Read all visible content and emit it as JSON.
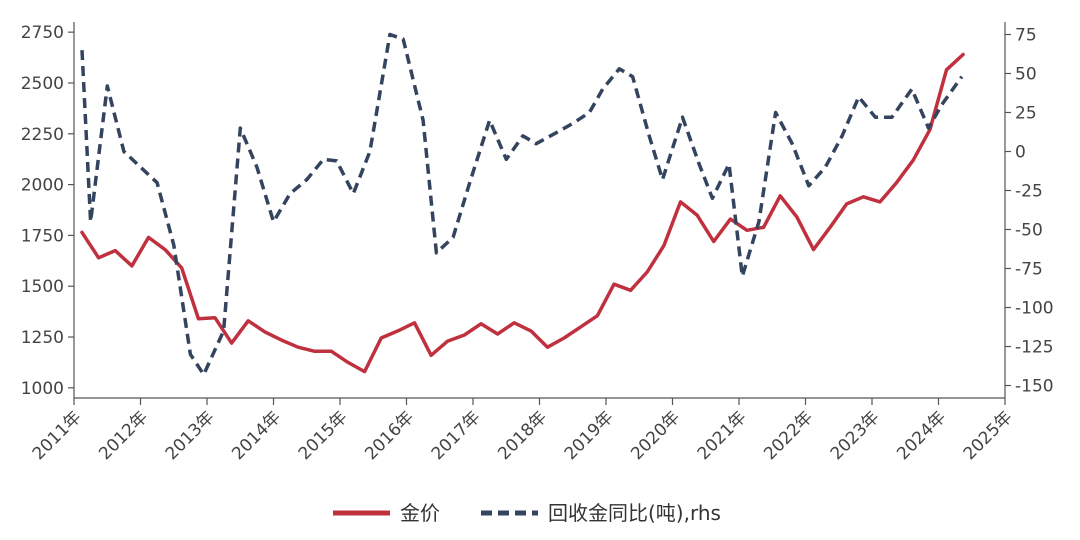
{
  "chart_data": {
    "type": "line",
    "x_axis": {
      "tick_labels": [
        "2011年",
        "2012年",
        "2013年",
        "2014年",
        "2015年",
        "2016年",
        "2017年",
        "2018年",
        "2019年",
        "2020年",
        "2021年",
        "2022年",
        "2023年",
        "2024年",
        "2025年"
      ],
      "range": [
        2011.0,
        2025.0
      ]
    },
    "y_left": {
      "range": [
        950,
        2800
      ],
      "ticks": [
        1000,
        1250,
        1500,
        1750,
        2000,
        2250,
        2500,
        2750
      ],
      "tick_labels": [
        "1000",
        "1250",
        "1500",
        "1750",
        "2000",
        "2250",
        "2500",
        "2750"
      ]
    },
    "y_right": {
      "range": [
        -158,
        83
      ],
      "ticks": [
        -150,
        -125,
        -100,
        -75,
        -50,
        -25,
        0,
        25,
        50,
        75
      ],
      "tick_labels": [
        "-150",
        "-125",
        "-100",
        "-75",
        "-50",
        "-25",
        "0",
        "25",
        "50",
        "75"
      ]
    },
    "grid": false,
    "legend_position": "bottom-center",
    "series": [
      {
        "name": "金价",
        "axis": "left",
        "color": "#c0313f",
        "style": "solid",
        "points": [
          [
            2011.12,
            1765
          ],
          [
            2011.37,
            1640
          ],
          [
            2011.62,
            1675
          ],
          [
            2011.87,
            1600
          ],
          [
            2012.12,
            1740
          ],
          [
            2012.37,
            1680
          ],
          [
            2012.62,
            1590
          ],
          [
            2012.87,
            1340
          ],
          [
            2013.12,
            1345
          ],
          [
            2013.37,
            1220
          ],
          [
            2013.62,
            1330
          ],
          [
            2013.87,
            1275
          ],
          [
            2014.12,
            1235
          ],
          [
            2014.37,
            1200
          ],
          [
            2014.62,
            1180
          ],
          [
            2014.87,
            1180
          ],
          [
            2015.12,
            1125
          ],
          [
            2015.37,
            1080
          ],
          [
            2015.62,
            1245
          ],
          [
            2015.87,
            1280
          ],
          [
            2016.12,
            1320
          ],
          [
            2016.37,
            1160
          ],
          [
            2016.62,
            1230
          ],
          [
            2016.87,
            1260
          ],
          [
            2017.12,
            1315
          ],
          [
            2017.37,
            1265
          ],
          [
            2017.62,
            1320
          ],
          [
            2017.87,
            1280
          ],
          [
            2018.12,
            1200
          ],
          [
            2018.37,
            1245
          ],
          [
            2018.62,
            1300
          ],
          [
            2018.87,
            1355
          ],
          [
            2019.12,
            1510
          ],
          [
            2019.37,
            1480
          ],
          [
            2019.62,
            1570
          ],
          [
            2019.87,
            1700
          ],
          [
            2020.12,
            1915
          ],
          [
            2020.37,
            1850
          ],
          [
            2020.62,
            1720
          ],
          [
            2020.87,
            1830
          ],
          [
            2021.12,
            1775
          ],
          [
            2021.37,
            1790
          ],
          [
            2021.62,
            1945
          ],
          [
            2021.87,
            1840
          ],
          [
            2022.12,
            1680
          ],
          [
            2022.37,
            1790
          ],
          [
            2022.62,
            1905
          ],
          [
            2022.87,
            1940
          ],
          [
            2023.12,
            1915
          ],
          [
            2023.37,
            2010
          ],
          [
            2023.62,
            2120
          ],
          [
            2023.87,
            2270
          ],
          [
            2024.12,
            2565
          ],
          [
            2024.37,
            2640
          ]
        ]
      },
      {
        "name": "回收金同比(吨),rhs",
        "axis": "right",
        "color": "#34445f",
        "style": "dashed",
        "points": [
          [
            2011.12,
            65
          ],
          [
            2011.25,
            -45
          ],
          [
            2011.5,
            42
          ],
          [
            2011.75,
            0
          ],
          [
            2012.0,
            -10
          ],
          [
            2012.25,
            -20
          ],
          [
            2012.5,
            -60
          ],
          [
            2012.75,
            -130
          ],
          [
            2012.95,
            -143
          ],
          [
            2013.25,
            -115
          ],
          [
            2013.5,
            15
          ],
          [
            2013.75,
            -10
          ],
          [
            2014.0,
            -45
          ],
          [
            2014.25,
            -27
          ],
          [
            2014.5,
            -18
          ],
          [
            2014.75,
            -5
          ],
          [
            2014.95,
            -6
          ],
          [
            2015.2,
            -27
          ],
          [
            2015.45,
            0
          ],
          [
            2015.75,
            75
          ],
          [
            2015.95,
            72
          ],
          [
            2016.25,
            20
          ],
          [
            2016.45,
            -65
          ],
          [
            2016.7,
            -55
          ],
          [
            2016.95,
            -20
          ],
          [
            2017.25,
            20
          ],
          [
            2017.5,
            -5
          ],
          [
            2017.75,
            10
          ],
          [
            2017.95,
            5
          ],
          [
            2018.25,
            12
          ],
          [
            2018.5,
            18
          ],
          [
            2018.75,
            25
          ],
          [
            2018.95,
            40
          ],
          [
            2019.2,
            53
          ],
          [
            2019.4,
            48
          ],
          [
            2019.65,
            10
          ],
          [
            2019.85,
            -18
          ],
          [
            2020.15,
            22
          ],
          [
            2020.4,
            -8
          ],
          [
            2020.6,
            -30
          ],
          [
            2020.85,
            -8
          ],
          [
            2021.05,
            -80
          ],
          [
            2021.3,
            -45
          ],
          [
            2021.55,
            25
          ],
          [
            2021.8,
            5
          ],
          [
            2022.05,
            -22
          ],
          [
            2022.3,
            -10
          ],
          [
            2022.55,
            10
          ],
          [
            2022.8,
            35
          ],
          [
            2023.05,
            22
          ],
          [
            2023.3,
            22
          ],
          [
            2023.6,
            40
          ],
          [
            2023.85,
            15
          ],
          [
            2024.05,
            30
          ],
          [
            2024.35,
            48
          ]
        ]
      }
    ]
  }
}
